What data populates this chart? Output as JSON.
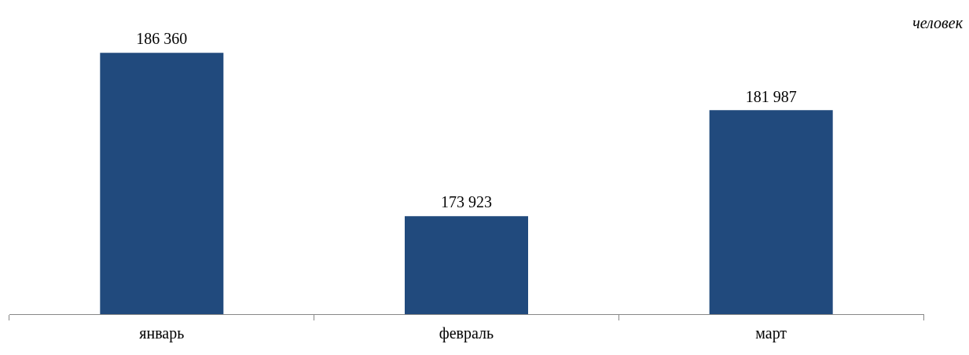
{
  "chart_data": {
    "type": "bar",
    "categories": [
      "январь",
      "февраль",
      "март"
    ],
    "values": [
      186360,
      173923,
      181987
    ],
    "color": "#214a7d",
    "value_labels": [
      "186 360",
      "173 923",
      "181 987"
    ],
    "tick_labels": "x",
    "grid": false,
    "legend": false,
    "annotations": [
      "человек"
    ]
  }
}
